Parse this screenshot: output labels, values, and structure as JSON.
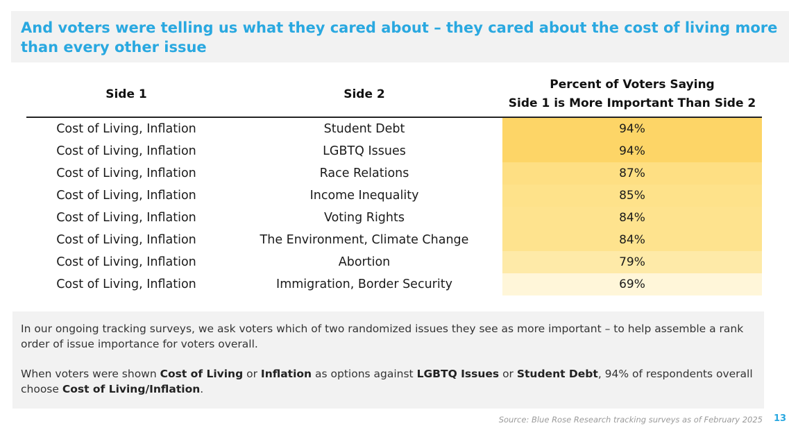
{
  "title": "And voters were telling us what they cared about – they cared about the cost of living more than every other issue",
  "table": {
    "headers": {
      "side1": "Side 1",
      "side2": "Side 2",
      "percent_line1": "Percent of Voters Saying",
      "percent_line2": "Side 1 is More Important Than Side 2"
    },
    "rows": [
      {
        "side1": "Cost of Living, Inflation",
        "side2": "Student Debt",
        "percent": "94%",
        "value": 94,
        "color": "#fdd567"
      },
      {
        "side1": "Cost of Living, Inflation",
        "side2": "LGBTQ Issues",
        "percent": "94%",
        "value": 94,
        "color": "#fdd567"
      },
      {
        "side1": "Cost of Living, Inflation",
        "side2": "Race Relations",
        "percent": "87%",
        "value": 87,
        "color": "#fedf83"
      },
      {
        "side1": "Cost of Living, Inflation",
        "side2": "Income Inequality",
        "percent": "85%",
        "value": 85,
        "color": "#fee28a"
      },
      {
        "side1": "Cost of Living, Inflation",
        "side2": "Voting Rights",
        "percent": "84%",
        "value": 84,
        "color": "#fee38e"
      },
      {
        "side1": "Cost of Living, Inflation",
        "side2": "The Environment, Climate Change",
        "percent": "84%",
        "value": 84,
        "color": "#fee38e"
      },
      {
        "side1": "Cost of Living, Inflation",
        "side2": "Abortion",
        "percent": "79%",
        "value": 79,
        "color": "#feeaa8"
      },
      {
        "side1": "Cost of Living, Inflation",
        "side2": "Immigration, Border Security",
        "percent": "69%",
        "value": 69,
        "color": "#fff6d9"
      }
    ]
  },
  "note": {
    "para1": "In our ongoing tracking surveys, we ask voters which of two randomized issues they see as more important – to help assemble a rank order of issue importance for voters overall.",
    "para2": {
      "t1": "When voters were shown ",
      "b1": "Cost of Living",
      "t2": " or ",
      "b2": "Inflation",
      "t3": " as options against ",
      "b3": "LGBTQ Issues",
      "t4": " or ",
      "b4": "Student Debt",
      "t5": ", 94% of respondents overall choose ",
      "b5": "Cost of Living/Inflation",
      "t6": "."
    }
  },
  "source": "Source: Blue Rose Research tracking surveys as of February 2025",
  "page_number": "13",
  "colors": {
    "title_blue": "#29a8e0",
    "panel_gray": "#f2f2f2"
  }
}
